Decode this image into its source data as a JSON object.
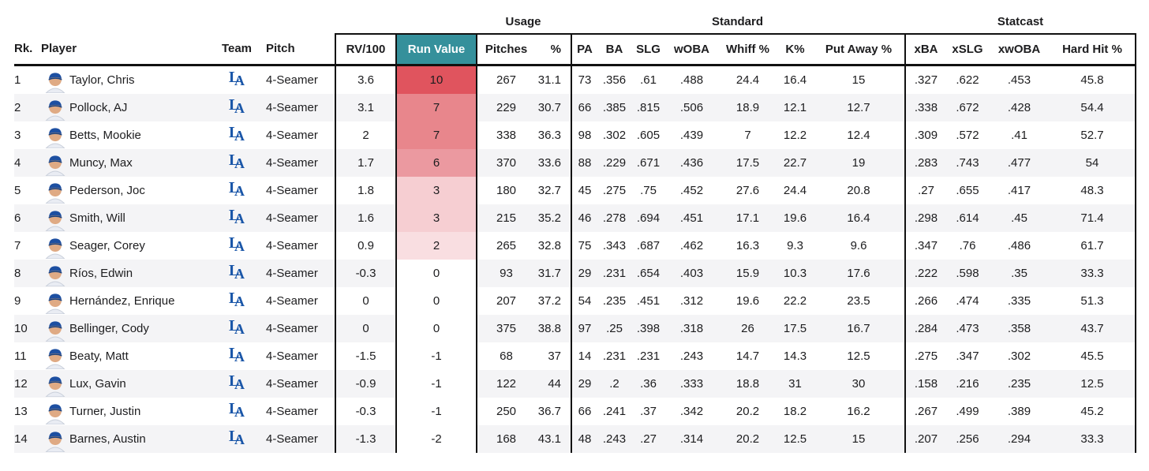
{
  "colors": {
    "run_value_header_teal": "#35909b",
    "border_dark": "#111111",
    "row_alt": "#f4f4f6",
    "logo_blue": "#1a56a8",
    "heat_scale": [
      "#e0545e",
      "#e8868c",
      "#eb99a0",
      "#f6ced2",
      "#f9dee1",
      "#ffffff"
    ]
  },
  "table": {
    "groups": {
      "usage": "Usage",
      "standard": "Standard",
      "statcast": "Statcast"
    },
    "headers": {
      "rk": "Rk.",
      "player": "Player",
      "team": "Team",
      "pitch": "Pitch",
      "rv100": "RV/100",
      "run_value": "Run Value",
      "pitches": "Pitches",
      "pct": "%",
      "pa": "PA",
      "ba": "BA",
      "slg": "SLG",
      "woba": "wOBA",
      "whiff": "Whiff %",
      "k": "K%",
      "putaway": "Put Away %",
      "xba": "xBA",
      "xslg": "xSLG",
      "xwoba": "xwOBA",
      "hardhit": "Hard Hit %"
    },
    "rows": [
      {
        "rk": "1",
        "player": "Taylor, Chris",
        "team": "LAD",
        "pitch": "4-Seamer",
        "rv100": "3.6",
        "run_value": "10",
        "rv_bg": "#e0545e",
        "pitches": "267",
        "pct": "31.1",
        "pa": "73",
        "ba": ".356",
        "slg": ".61",
        "woba": ".488",
        "whiff": "24.4",
        "k": "16.4",
        "putaway": "15",
        "xba": ".327",
        "xslg": ".622",
        "xwoba": ".453",
        "hardhit": "45.8"
      },
      {
        "rk": "2",
        "player": "Pollock, AJ",
        "team": "LAD",
        "pitch": "4-Seamer",
        "rv100": "3.1",
        "run_value": "7",
        "rv_bg": "#e8868c",
        "pitches": "229",
        "pct": "30.7",
        "pa": "66",
        "ba": ".385",
        "slg": ".815",
        "woba": ".506",
        "whiff": "18.9",
        "k": "12.1",
        "putaway": "12.7",
        "xba": ".338",
        "xslg": ".672",
        "xwoba": ".428",
        "hardhit": "54.4"
      },
      {
        "rk": "3",
        "player": "Betts, Mookie",
        "team": "LAD",
        "pitch": "4-Seamer",
        "rv100": "2",
        "run_value": "7",
        "rv_bg": "#e8868c",
        "pitches": "338",
        "pct": "36.3",
        "pa": "98",
        "ba": ".302",
        "slg": ".605",
        "woba": ".439",
        "whiff": "7",
        "k": "12.2",
        "putaway": "12.4",
        "xba": ".309",
        "xslg": ".572",
        "xwoba": ".41",
        "hardhit": "52.7"
      },
      {
        "rk": "4",
        "player": "Muncy, Max",
        "team": "LAD",
        "pitch": "4-Seamer",
        "rv100": "1.7",
        "run_value": "6",
        "rv_bg": "#eb99a0",
        "pitches": "370",
        "pct": "33.6",
        "pa": "88",
        "ba": ".229",
        "slg": ".671",
        "woba": ".436",
        "whiff": "17.5",
        "k": "22.7",
        "putaway": "19",
        "xba": ".283",
        "xslg": ".743",
        "xwoba": ".477",
        "hardhit": "54"
      },
      {
        "rk": "5",
        "player": "Pederson, Joc",
        "team": "LAD",
        "pitch": "4-Seamer",
        "rv100": "1.8",
        "run_value": "3",
        "rv_bg": "#f6ced2",
        "pitches": "180",
        "pct": "32.7",
        "pa": "45",
        "ba": ".275",
        "slg": ".75",
        "woba": ".452",
        "whiff": "27.6",
        "k": "24.4",
        "putaway": "20.8",
        "xba": ".27",
        "xslg": ".655",
        "xwoba": ".417",
        "hardhit": "48.3"
      },
      {
        "rk": "6",
        "player": "Smith, Will",
        "team": "LAD",
        "pitch": "4-Seamer",
        "rv100": "1.6",
        "run_value": "3",
        "rv_bg": "#f6ced2",
        "pitches": "215",
        "pct": "35.2",
        "pa": "46",
        "ba": ".278",
        "slg": ".694",
        "woba": ".451",
        "whiff": "17.1",
        "k": "19.6",
        "putaway": "16.4",
        "xba": ".298",
        "xslg": ".614",
        "xwoba": ".45",
        "hardhit": "71.4"
      },
      {
        "rk": "7",
        "player": "Seager, Corey",
        "team": "LAD",
        "pitch": "4-Seamer",
        "rv100": "0.9",
        "run_value": "2",
        "rv_bg": "#f9dee1",
        "pitches": "265",
        "pct": "32.8",
        "pa": "75",
        "ba": ".343",
        "slg": ".687",
        "woba": ".462",
        "whiff": "16.3",
        "k": "9.3",
        "putaway": "9.6",
        "xba": ".347",
        "xslg": ".76",
        "xwoba": ".486",
        "hardhit": "61.7"
      },
      {
        "rk": "8",
        "player": "Ríos, Edwin",
        "team": "LAD",
        "pitch": "4-Seamer",
        "rv100": "-0.3",
        "run_value": "0",
        "rv_bg": "#ffffff",
        "pitches": "93",
        "pct": "31.7",
        "pa": "29",
        "ba": ".231",
        "slg": ".654",
        "woba": ".403",
        "whiff": "15.9",
        "k": "10.3",
        "putaway": "17.6",
        "xba": ".222",
        "xslg": ".598",
        "xwoba": ".35",
        "hardhit": "33.3"
      },
      {
        "rk": "9",
        "player": "Hernández, Enrique",
        "team": "LAD",
        "pitch": "4-Seamer",
        "rv100": "0",
        "run_value": "0",
        "rv_bg": "#ffffff",
        "pitches": "207",
        "pct": "37.2",
        "pa": "54",
        "ba": ".235",
        "slg": ".451",
        "woba": ".312",
        "whiff": "19.6",
        "k": "22.2",
        "putaway": "23.5",
        "xba": ".266",
        "xslg": ".474",
        "xwoba": ".335",
        "hardhit": "51.3"
      },
      {
        "rk": "10",
        "player": "Bellinger, Cody",
        "team": "LAD",
        "pitch": "4-Seamer",
        "rv100": "0",
        "run_value": "0",
        "rv_bg": "#ffffff",
        "pitches": "375",
        "pct": "38.8",
        "pa": "97",
        "ba": ".25",
        "slg": ".398",
        "woba": ".318",
        "whiff": "26",
        "k": "17.5",
        "putaway": "16.7",
        "xba": ".284",
        "xslg": ".473",
        "xwoba": ".358",
        "hardhit": "43.7"
      },
      {
        "rk": "11",
        "player": "Beaty, Matt",
        "team": "LAD",
        "pitch": "4-Seamer",
        "rv100": "-1.5",
        "run_value": "-1",
        "rv_bg": "#ffffff",
        "pitches": "68",
        "pct": "37",
        "pa": "14",
        "ba": ".231",
        "slg": ".231",
        "woba": ".243",
        "whiff": "14.7",
        "k": "14.3",
        "putaway": "12.5",
        "xba": ".275",
        "xslg": ".347",
        "xwoba": ".302",
        "hardhit": "45.5"
      },
      {
        "rk": "12",
        "player": "Lux, Gavin",
        "team": "LAD",
        "pitch": "4-Seamer",
        "rv100": "-0.9",
        "run_value": "-1",
        "rv_bg": "#ffffff",
        "pitches": "122",
        "pct": "44",
        "pa": "29",
        "ba": ".2",
        "slg": ".36",
        "woba": ".333",
        "whiff": "18.8",
        "k": "31",
        "putaway": "30",
        "xba": ".158",
        "xslg": ".216",
        "xwoba": ".235",
        "hardhit": "12.5"
      },
      {
        "rk": "13",
        "player": "Turner, Justin",
        "team": "LAD",
        "pitch": "4-Seamer",
        "rv100": "-0.3",
        "run_value": "-1",
        "rv_bg": "#ffffff",
        "pitches": "250",
        "pct": "36.7",
        "pa": "66",
        "ba": ".241",
        "slg": ".37",
        "woba": ".342",
        "whiff": "20.2",
        "k": "18.2",
        "putaway": "16.2",
        "xba": ".267",
        "xslg": ".499",
        "xwoba": ".389",
        "hardhit": "45.2"
      },
      {
        "rk": "14",
        "player": "Barnes, Austin",
        "team": "LAD",
        "pitch": "4-Seamer",
        "rv100": "-1.3",
        "run_value": "-2",
        "rv_bg": "#ffffff",
        "pitches": "168",
        "pct": "43.1",
        "pa": "48",
        "ba": ".243",
        "slg": ".27",
        "woba": ".314",
        "whiff": "20.2",
        "k": "12.5",
        "putaway": "15",
        "xba": ".207",
        "xslg": ".256",
        "xwoba": ".294",
        "hardhit": "33.3"
      }
    ]
  }
}
